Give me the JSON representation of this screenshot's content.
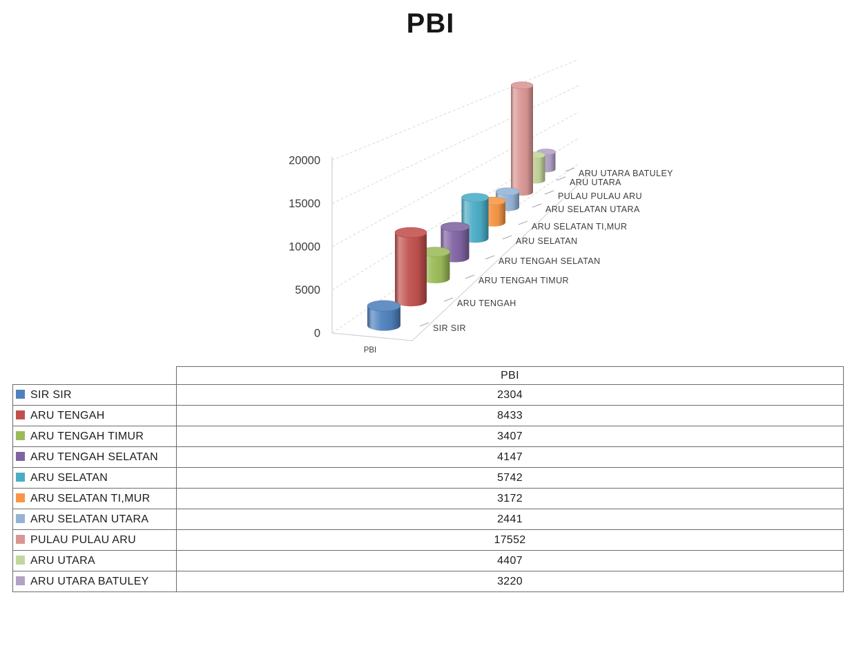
{
  "chart": {
    "title": "PBI",
    "floor_series_label": "PBI"
  },
  "chart_data": {
    "type": "bar",
    "subtype": "3d-cylinder",
    "title": "PBI",
    "categories": [
      "SIR SIR",
      "ARU TENGAH",
      "ARU TENGAH TIMUR",
      "ARU TENGAH SELATAN",
      "ARU SELATAN",
      "ARU SELATAN TI,MUR",
      "ARU SELATAN UTARA",
      "PULAU PULAU ARU",
      "ARU UTARA",
      "ARU UTARA BATULEY"
    ],
    "series": [
      {
        "name": "PBI",
        "values": [
          2304,
          8433,
          3407,
          4147,
          5742,
          3172,
          2441,
          17552,
          4407,
          3220
        ]
      }
    ],
    "colors": [
      "#4F81BD",
      "#C0504D",
      "#9BBB59",
      "#8064A2",
      "#4BACC6",
      "#F79646",
      "#95B3D7",
      "#D99694",
      "#C3D69B",
      "#B3A2C7"
    ],
    "xlabel": "",
    "ylabel": "",
    "ylim": [
      0,
      20000
    ],
    "ytick_interval": 5000,
    "ytick_labels": [
      "0",
      "5000",
      "10000",
      "15000",
      "20000"
    ],
    "grid": "dashed",
    "legend": "none",
    "series_axis_label": "PBI"
  },
  "table": {
    "value_header": "PBI",
    "rows": [
      {
        "label": "SIR SIR",
        "value": "2304",
        "color": "#4F81BD"
      },
      {
        "label": "ARU TENGAH",
        "value": "8433",
        "color": "#C0504D"
      },
      {
        "label": "ARU TENGAH TIMUR",
        "value": "3407",
        "color": "#9BBB59"
      },
      {
        "label": "ARU TENGAH SELATAN",
        "value": "4147",
        "color": "#8064A2"
      },
      {
        "label": "ARU SELATAN",
        "value": "5742",
        "color": "#4BACC6"
      },
      {
        "label": "ARU SELATAN TI,MUR",
        "value": "3172",
        "color": "#F79646"
      },
      {
        "label": "ARU SELATAN UTARA",
        "value": "2441",
        "color": "#95B3D7"
      },
      {
        "label": "PULAU PULAU ARU",
        "value": "17552",
        "color": "#D99694"
      },
      {
        "label": "ARU UTARA",
        "value": "4407",
        "color": "#C3D69B"
      },
      {
        "label": "ARU UTARA BATULEY",
        "value": "3220",
        "color": "#B3A2C7"
      }
    ]
  }
}
